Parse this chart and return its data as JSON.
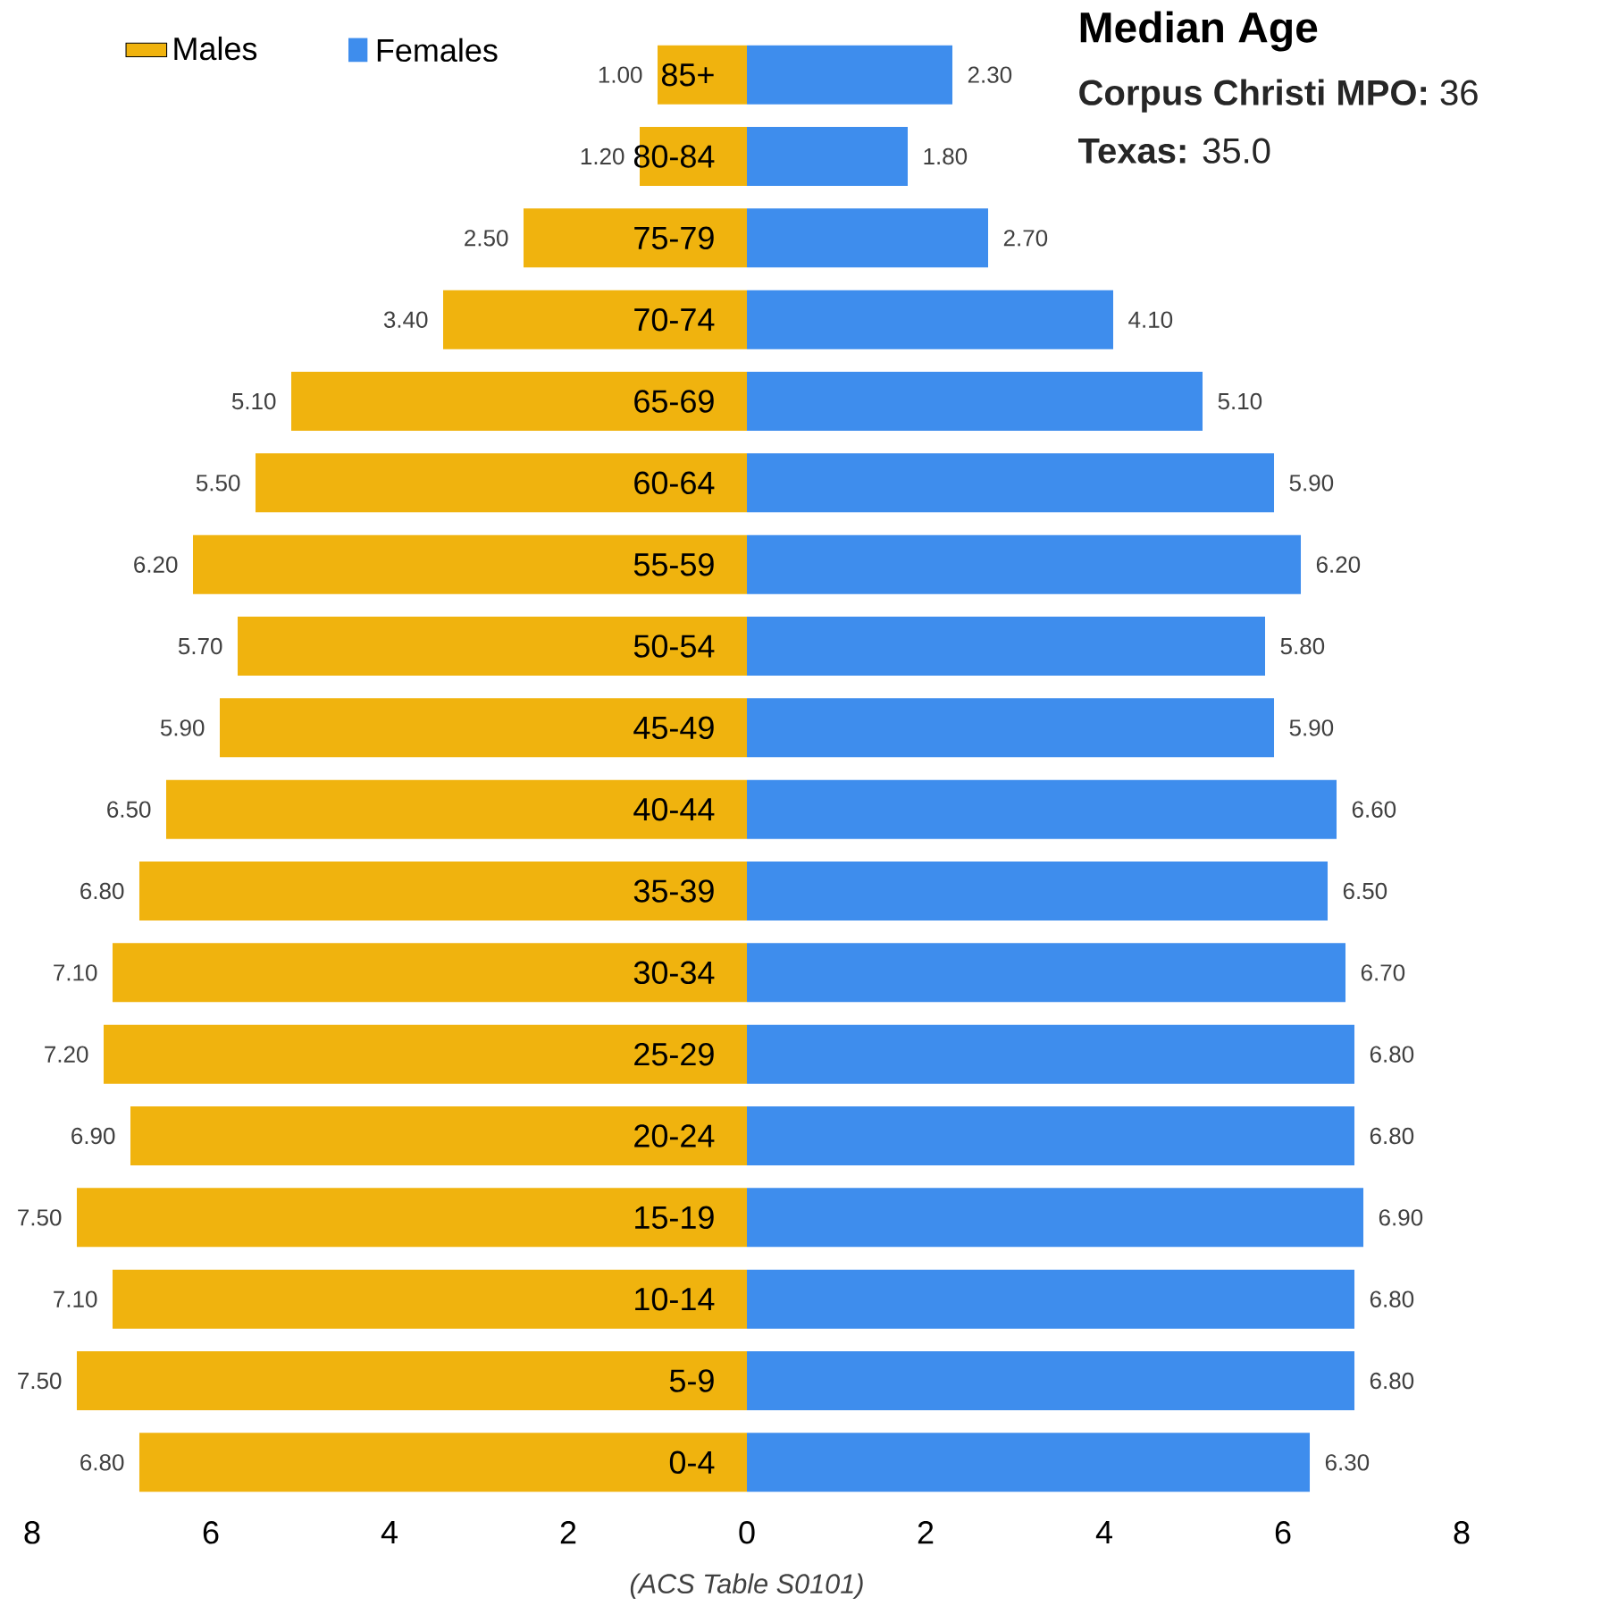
{
  "chart_data": [
    {
      "type": "bar",
      "orientation": "horizontal",
      "categories": [
        "85+",
        "80-84",
        "75-79",
        "70-74",
        "65-69",
        "60-64",
        "55-59",
        "50-54",
        "45-49",
        "40-44",
        "35-39",
        "30-34",
        "25-29",
        "20-24",
        "15-19",
        "10-14",
        "5-9",
        "0-4"
      ],
      "series": [
        {
          "name": "Males",
          "color": "#f0b30e",
          "values": [
            1.0,
            1.2,
            2.5,
            3.4,
            5.1,
            5.5,
            6.2,
            5.7,
            5.9,
            6.5,
            6.8,
            7.1,
            7.2,
            6.9,
            7.5,
            7.1,
            7.5,
            6.8
          ],
          "value_labels": [
            "1.00",
            "1.20",
            "2.50",
            "3.40",
            "5.10",
            "5.50",
            "6.20",
            "5.70",
            "5.90",
            "6.50",
            "6.80",
            "7.10",
            "7.20",
            "6.90",
            "7.50",
            "7.10",
            "7.50",
            "6.80"
          ]
        }
      ],
      "xlim": [
        8,
        0
      ],
      "xticks": [
        8,
        6,
        4,
        2
      ],
      "legend": "top left"
    },
    {
      "type": "bar",
      "orientation": "horizontal",
      "title": "Median Age",
      "annotations": [
        "**Corpus Christi MPO:** 36",
        "**Texas:** 35.0",
        "(ACS Table S0101)"
      ],
      "categories": [
        null,
        null,
        null,
        null,
        null,
        null,
        null,
        null,
        null,
        null,
        null,
        null,
        null,
        null,
        null,
        null,
        null,
        null
      ],
      "series": [
        {
          "name": "Females",
          "color": "#3e8ded",
          "values": [
            2.3,
            1.8,
            2.7,
            4.1,
            5.1,
            5.9,
            6.2,
            5.8,
            5.9,
            6.6,
            6.5,
            6.7,
            6.8,
            6.8,
            6.9,
            6.8,
            6.8,
            6.3
          ],
          "value_labels": [
            "2.30",
            "1.80",
            "2.70",
            "4.10",
            "5.10",
            "5.90",
            "6.20",
            "5.80",
            "5.90",
            "6.60",
            "6.50",
            "6.70",
            "6.80",
            "6.80",
            "6.90",
            "6.80",
            "6.80",
            "6.30"
          ]
        }
      ],
      "xlim": [
        0,
        8
      ],
      "xticks": [
        0,
        2,
        4,
        6,
        8
      ],
      "legend": "top left"
    }
  ]
}
